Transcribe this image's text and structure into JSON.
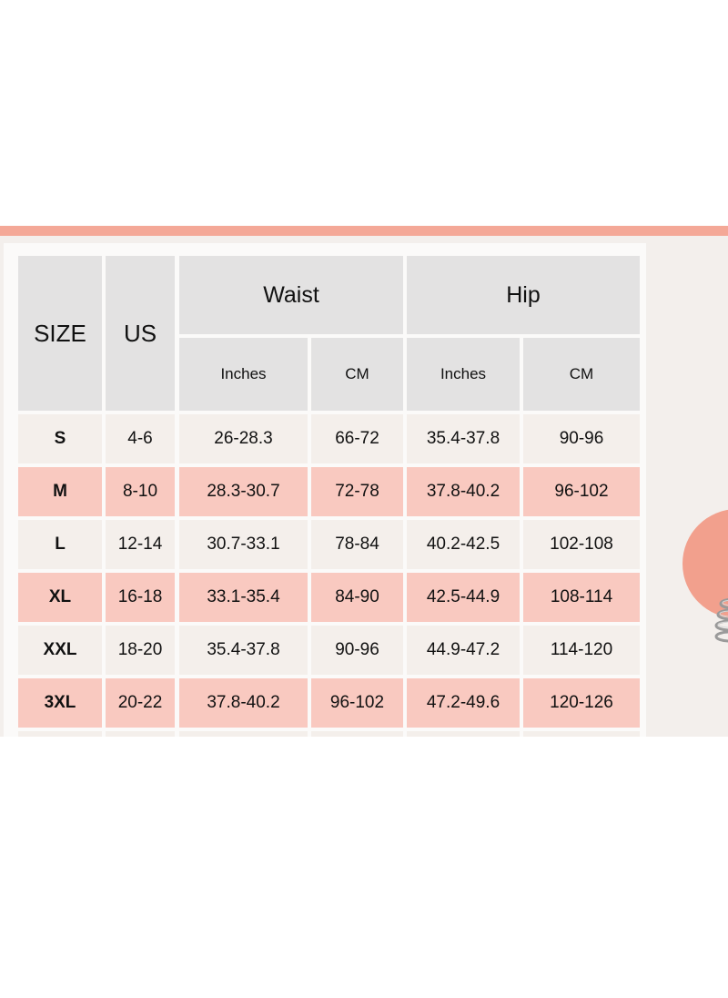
{
  "header": {
    "size": "SIZE",
    "us": "US",
    "waist": "Waist",
    "hip": "Hip",
    "waist_inches": "Inches",
    "waist_cm": "CM",
    "hip_inches": "Inches",
    "hip_cm": "CM"
  },
  "rows": [
    {
      "size": "S",
      "us": "4-6",
      "waist_in": "26-28.3",
      "waist_cm": "66-72",
      "hip_in": "35.4-37.8",
      "hip_cm": "90-96"
    },
    {
      "size": "M",
      "us": "8-10",
      "waist_in": "28.3-30.7",
      "waist_cm": "72-78",
      "hip_in": "37.8-40.2",
      "hip_cm": "96-102"
    },
    {
      "size": "L",
      "us": "12-14",
      "waist_in": "30.7-33.1",
      "waist_cm": "78-84",
      "hip_in": "40.2-42.5",
      "hip_cm": "102-108"
    },
    {
      "size": "XL",
      "us": "16-18",
      "waist_in": "33.1-35.4",
      "waist_cm": "84-90",
      "hip_in": "42.5-44.9",
      "hip_cm": "108-114"
    },
    {
      "size": "XXL",
      "us": "18-20",
      "waist_in": "35.4-37.8",
      "waist_cm": "90-96",
      "hip_in": "44.9-47.2",
      "hip_cm": "114-120"
    },
    {
      "size": "3XL",
      "us": "20-22",
      "waist_in": "37.8-40.2",
      "waist_cm": "96-102",
      "hip_in": "47.2-49.6",
      "hip_cm": "120-126"
    }
  ],
  "colors": {
    "accent_bar": "#f4a897",
    "header_bg": "#e3e2e2",
    "row_light": "#f4efeb",
    "row_pink": "#f9c9c0",
    "deco_circle": "#f2a08d"
  }
}
